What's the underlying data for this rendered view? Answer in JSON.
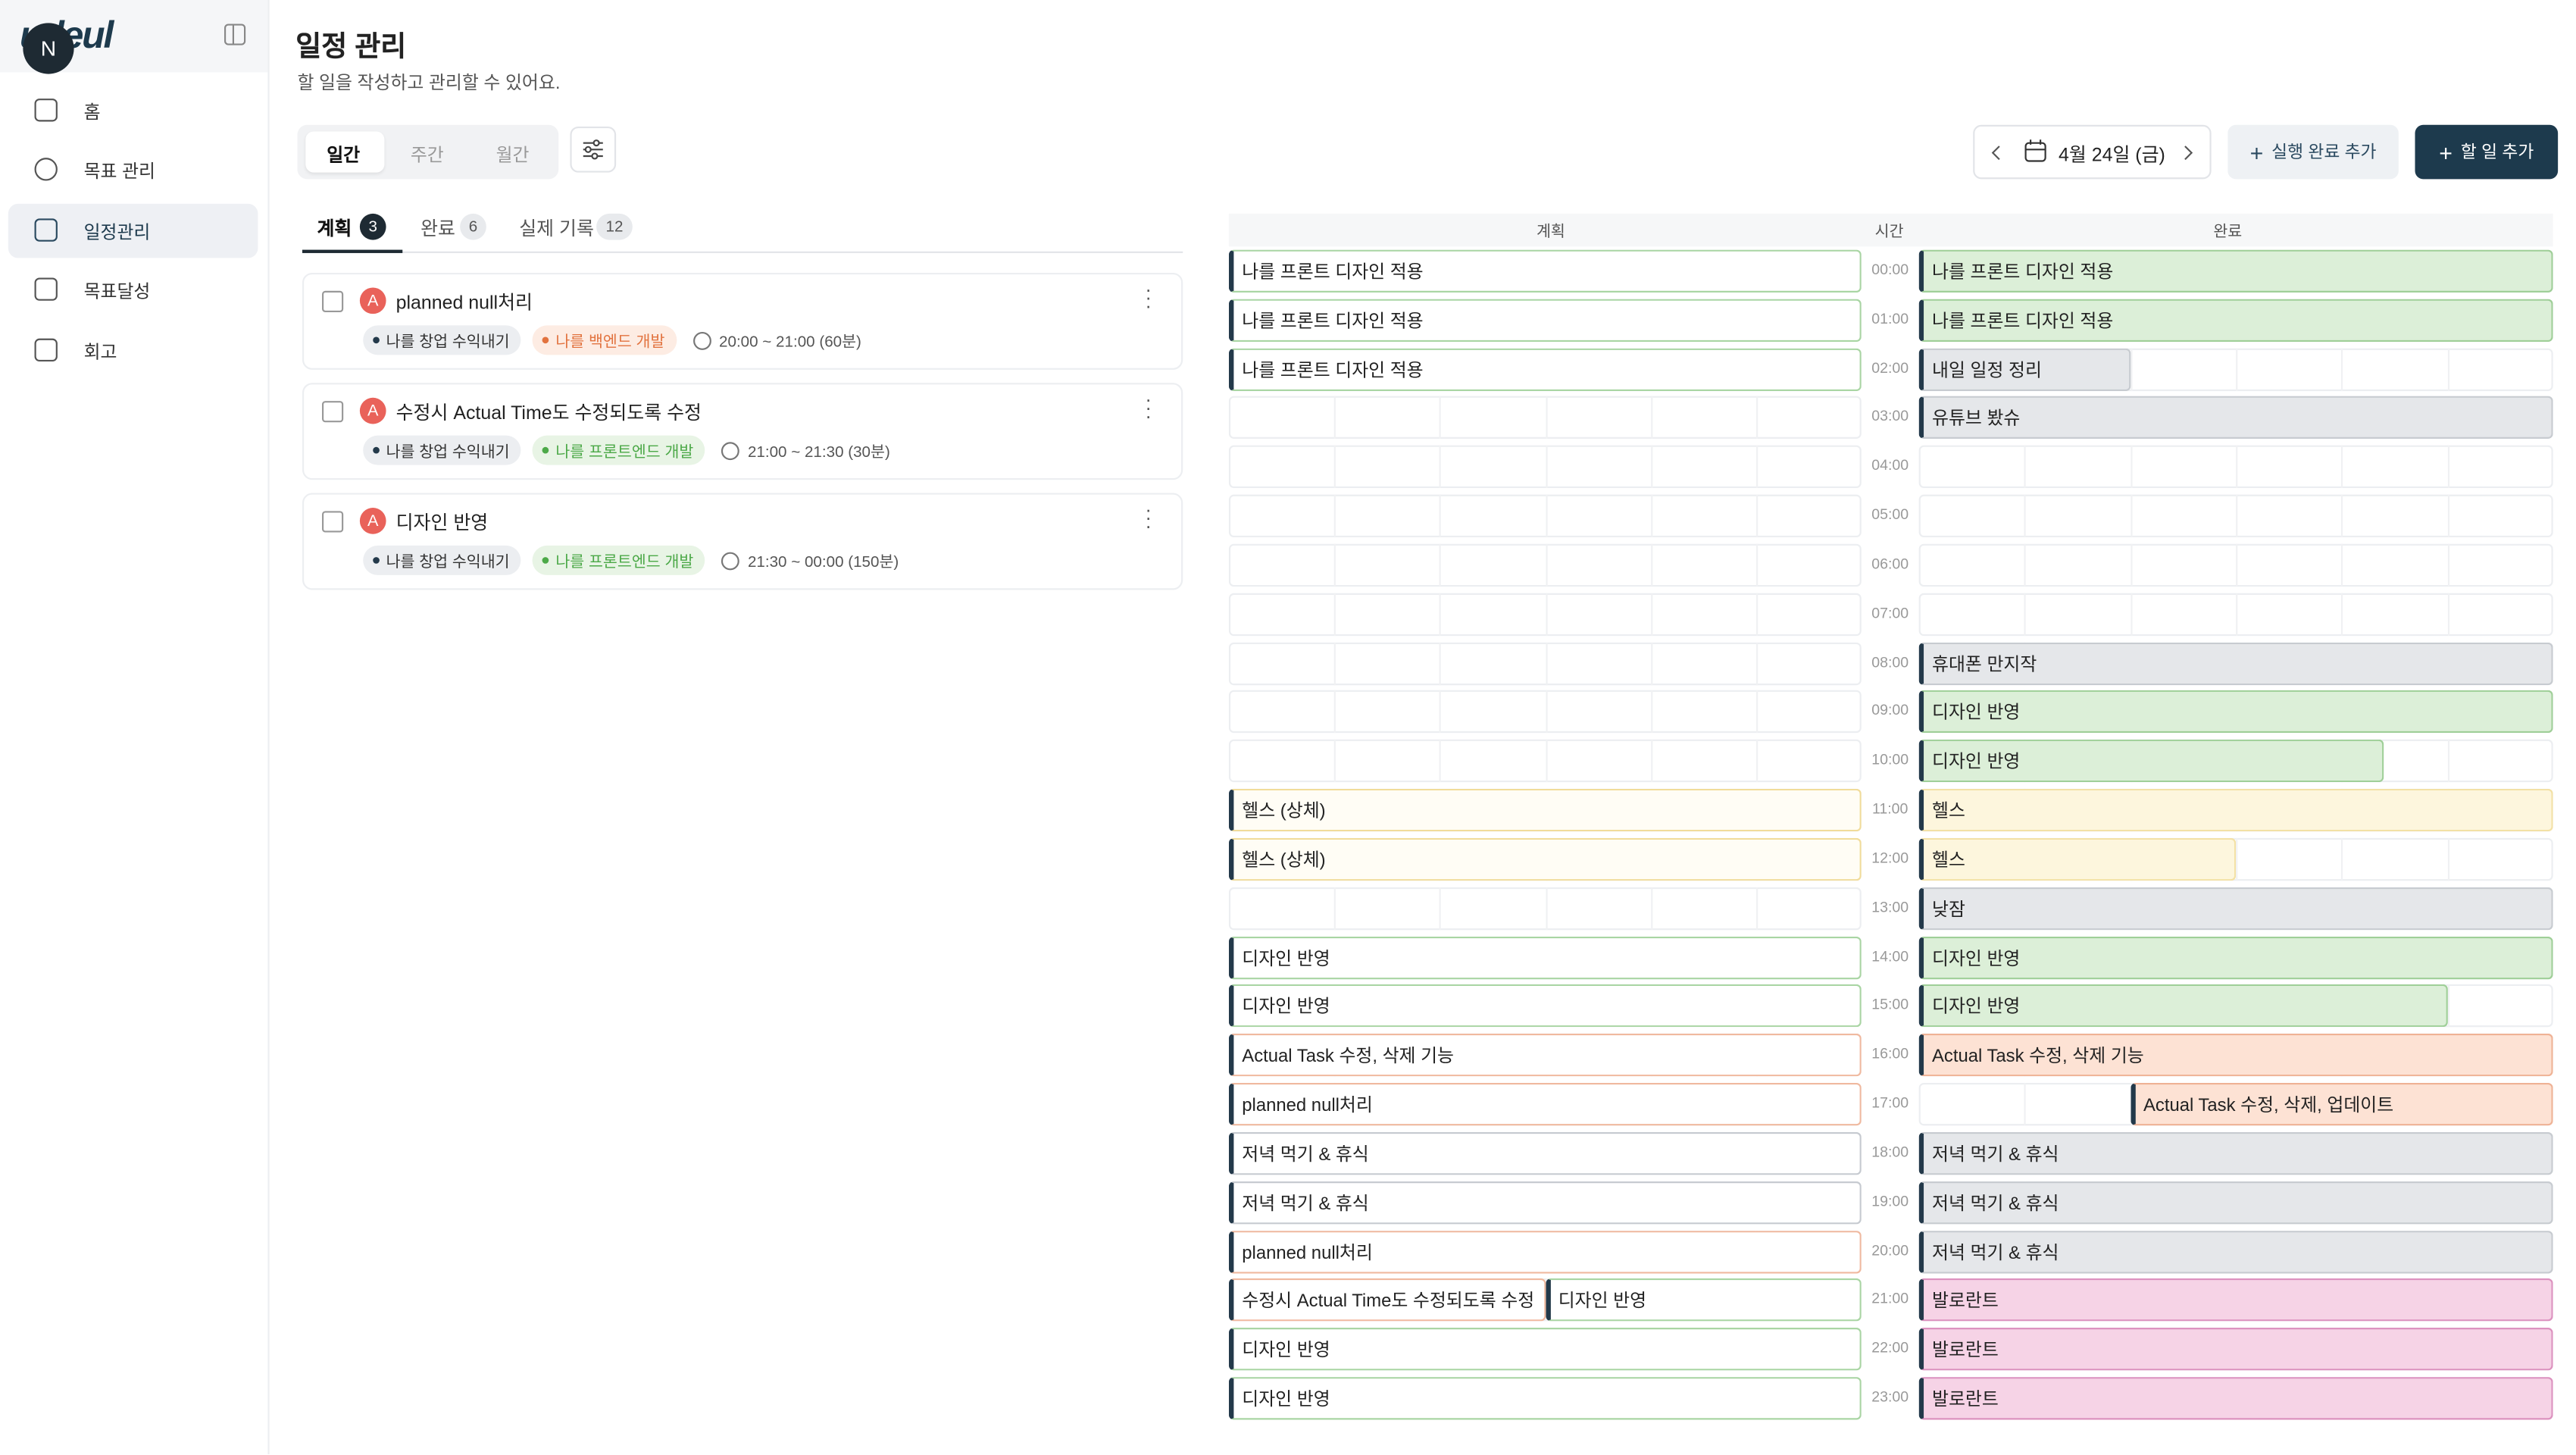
{
  "sidebar": {
    "logo": "udeul",
    "avatar": "N",
    "nav": [
      {
        "label": "홈",
        "active": false
      },
      {
        "label": "목표 관리",
        "active": false
      },
      {
        "label": "일정관리",
        "active": true
      },
      {
        "label": "목표달성",
        "active": false
      },
      {
        "label": "회고",
        "active": false
      }
    ]
  },
  "header": {
    "title": "일정 관리",
    "subtitle": "할 일을 작성하고 관리할 수 있어요."
  },
  "toolbar": {
    "views": [
      {
        "label": "일간",
        "active": true
      },
      {
        "label": "주간",
        "active": false
      },
      {
        "label": "월간",
        "active": false
      }
    ],
    "date": "4월 24일 (금)",
    "buttons": [
      "실행 완료 추가",
      "할 일 추가"
    ]
  },
  "list_tabs": [
    {
      "label": "계획",
      "count": 3,
      "active": true
    },
    {
      "label": "완료",
      "count": 6,
      "active": false
    },
    {
      "label": "실제 기록",
      "count": 12,
      "active": false
    }
  ],
  "tasks": [
    {
      "badge": "A",
      "title": "planned null처리",
      "tags": [
        {
          "label": "나를 창업 수익내기",
          "color": "gray"
        },
        {
          "label": "나를 백엔드 개발",
          "color": "orange"
        }
      ],
      "time": "20:00 ~ 21:00 (60분)"
    },
    {
      "badge": "A",
      "title": "수정시 Actual Time도 수정되도록 수정",
      "tags": [
        {
          "label": "나를 창업 수익내기",
          "color": "gray"
        },
        {
          "label": "나를 프론트엔드 개발",
          "color": "green"
        }
      ],
      "time": "21:00 ~ 21:30 (30분)"
    },
    {
      "badge": "A",
      "title": "디자인 반영",
      "tags": [
        {
          "label": "나를 창업 수익내기",
          "color": "gray"
        },
        {
          "label": "나를 프론트엔드 개발",
          "color": "green"
        }
      ],
      "time": "21:30 ~ 00:00 (150분)"
    }
  ],
  "timeline": {
    "columns": [
      "계획",
      "시간",
      "완료"
    ],
    "rows": [
      {
        "hour": "00:00",
        "plan": [
          {
            "label": "나를 프론트 디자인 적용",
            "color": "green",
            "start": 0,
            "end": 60
          }
        ],
        "done": [
          {
            "label": "나를 프론트 디자인 적용",
            "color": "green",
            "start": 0,
            "end": 60
          }
        ]
      },
      {
        "hour": "01:00",
        "plan": [
          {
            "label": "나를 프론트 디자인 적용",
            "color": "green",
            "start": 0,
            "end": 60
          }
        ],
        "done": [
          {
            "label": "나를 프론트 디자인 적용",
            "color": "green",
            "start": 0,
            "end": 60
          }
        ]
      },
      {
        "hour": "02:00",
        "plan": [
          {
            "label": "나를 프론트 디자인 적용",
            "color": "green",
            "start": 0,
            "end": 60
          }
        ],
        "done": [
          {
            "label": "내일 일정 정리",
            "color": "gray",
            "start": 0,
            "end": 20
          }
        ]
      },
      {
        "hour": "03:00",
        "plan": [],
        "done": [
          {
            "label": "유튜브 봤슈",
            "color": "gray",
            "start": 0,
            "end": 60
          }
        ]
      },
      {
        "hour": "04:00",
        "plan": [],
        "done": []
      },
      {
        "hour": "05:00",
        "plan": [],
        "done": []
      },
      {
        "hour": "06:00",
        "plan": [],
        "done": []
      },
      {
        "hour": "07:00",
        "plan": [],
        "done": []
      },
      {
        "hour": "08:00",
        "plan": [],
        "done": [
          {
            "label": "휴대폰 만지작",
            "color": "gray",
            "start": 0,
            "end": 60
          }
        ]
      },
      {
        "hour": "09:00",
        "plan": [],
        "done": [
          {
            "label": "디자인 반영",
            "color": "green",
            "start": 0,
            "end": 60
          }
        ]
      },
      {
        "hour": "10:00",
        "plan": [],
        "done": [
          {
            "label": "디자인 반영",
            "color": "green",
            "start": 0,
            "end": 44
          }
        ]
      },
      {
        "hour": "11:00",
        "plan": [
          {
            "label": "헬스 (상체)",
            "color": "yellow",
            "start": 0,
            "end": 60
          }
        ],
        "done": [
          {
            "label": "헬스",
            "color": "yellow",
            "start": 0,
            "end": 60
          }
        ]
      },
      {
        "hour": "12:00",
        "plan": [
          {
            "label": "헬스 (상체)",
            "color": "yellow",
            "start": 0,
            "end": 60
          }
        ],
        "done": [
          {
            "label": "헬스",
            "color": "yellow",
            "start": 0,
            "end": 30
          }
        ]
      },
      {
        "hour": "13:00",
        "plan": [],
        "done": [
          {
            "label": "낮잠",
            "color": "gray",
            "start": 0,
            "end": 60
          }
        ]
      },
      {
        "hour": "14:00",
        "plan": [
          {
            "label": "디자인 반영",
            "color": "green",
            "start": 0,
            "end": 60
          }
        ],
        "done": [
          {
            "label": "디자인 반영",
            "color": "green",
            "start": 0,
            "end": 60
          }
        ]
      },
      {
        "hour": "15:00",
        "plan": [
          {
            "label": "디자인 반영",
            "color": "green",
            "start": 0,
            "end": 60
          }
        ],
        "done": [
          {
            "label": "디자인 반영",
            "color": "green",
            "start": 0,
            "end": 50
          }
        ]
      },
      {
        "hour": "16:00",
        "plan": [
          {
            "label": "Actual Task 수정, 삭제 기능",
            "color": "orange",
            "start": 0,
            "end": 60
          }
        ],
        "done": [
          {
            "label": "Actual Task 수정, 삭제 기능",
            "color": "orange",
            "start": 0,
            "end": 60
          }
        ]
      },
      {
        "hour": "17:00",
        "plan": [
          {
            "label": "planned null처리",
            "color": "orange",
            "start": 0,
            "end": 60
          }
        ],
        "done": [
          {
            "label": "Actual Task 수정, 삭제, 업데이트",
            "color": "orange",
            "start": 20,
            "end": 60
          }
        ]
      },
      {
        "hour": "18:00",
        "plan": [
          {
            "label": "저녁 먹기 & 휴식",
            "color": "gray",
            "start": 0,
            "end": 60
          }
        ],
        "done": [
          {
            "label": "저녁 먹기 & 휴식",
            "color": "gray",
            "start": 0,
            "end": 60
          }
        ]
      },
      {
        "hour": "19:00",
        "plan": [
          {
            "label": "저녁 먹기 & 휴식",
            "color": "gray",
            "start": 0,
            "end": 60
          }
        ],
        "done": [
          {
            "label": "저녁 먹기 & 휴식",
            "color": "gray",
            "start": 0,
            "end": 60
          }
        ]
      },
      {
        "hour": "20:00",
        "plan": [
          {
            "label": "planned null처리",
            "color": "orange",
            "start": 0,
            "end": 60
          }
        ],
        "done": [
          {
            "label": "저녁 먹기 & 휴식",
            "color": "gray",
            "start": 0,
            "end": 60
          }
        ]
      },
      {
        "hour": "21:00",
        "plan": [
          {
            "label": "수정시 Actual Time도 수정되도록 수정",
            "color": "orange",
            "start": 0,
            "end": 30
          },
          {
            "label": "디자인 반영",
            "color": "green",
            "start": 30,
            "end": 60
          }
        ],
        "done": [
          {
            "label": "발로란트",
            "color": "pink",
            "start": 0,
            "end": 60
          }
        ]
      },
      {
        "hour": "22:00",
        "plan": [
          {
            "label": "디자인 반영",
            "color": "green",
            "start": 0,
            "end": 60
          }
        ],
        "done": [
          {
            "label": "발로란트",
            "color": "pink",
            "start": 0,
            "end": 60
          }
        ]
      },
      {
        "hour": "23:00",
        "plan": [
          {
            "label": "디자인 반영",
            "color": "green",
            "start": 0,
            "end": 60
          }
        ],
        "done": [
          {
            "label": "발로란트",
            "color": "pink",
            "start": 0,
            "end": 60
          }
        ]
      }
    ]
  }
}
